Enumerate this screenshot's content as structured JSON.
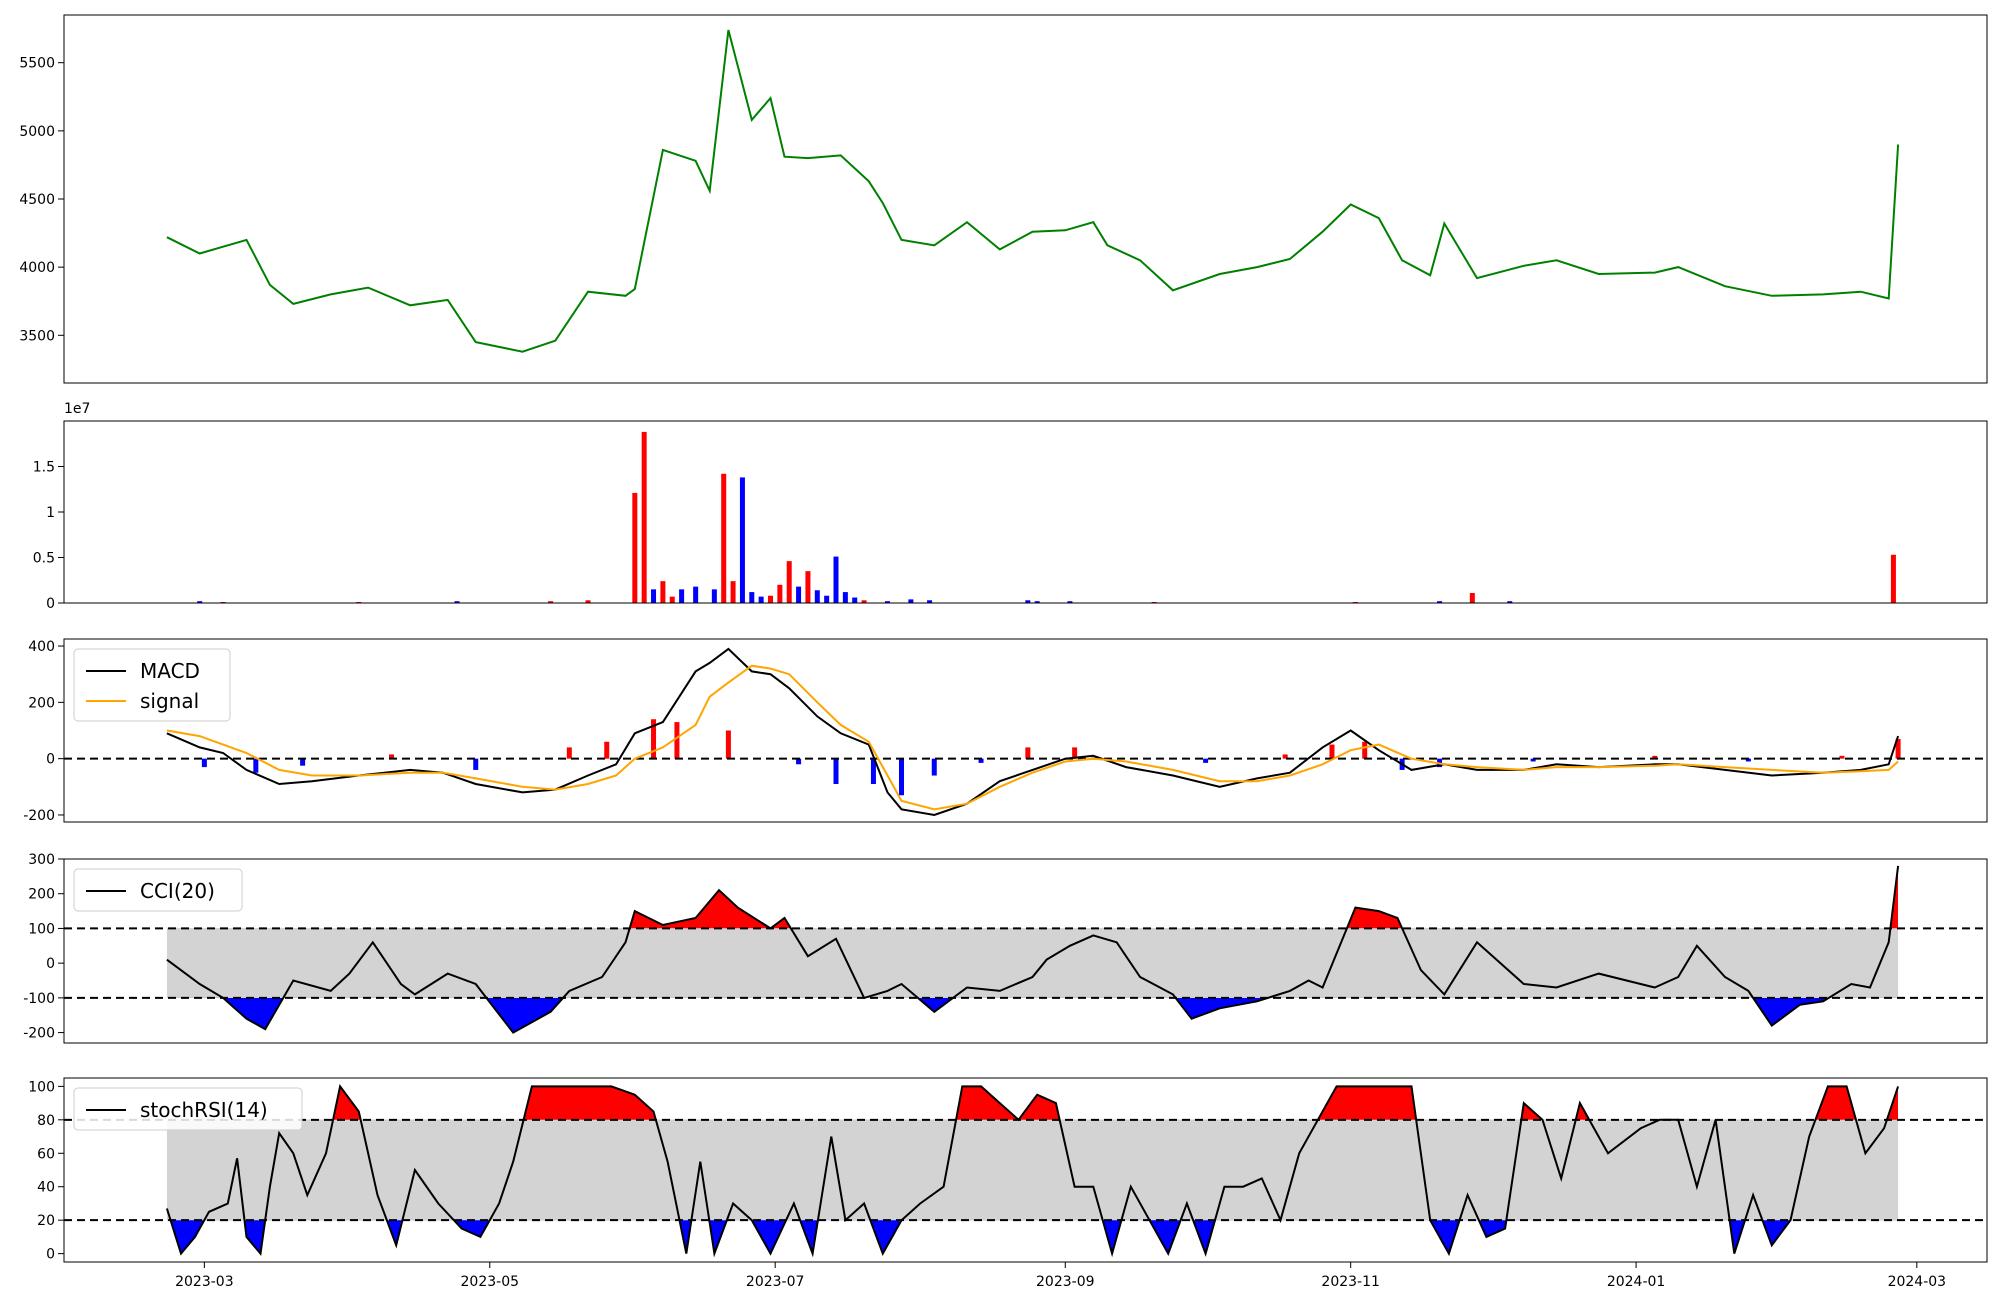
{
  "chart_data": [
    {
      "type": "line",
      "panel": "price",
      "ylim": [
        3150,
        5850
      ],
      "yticks": [
        3500,
        4000,
        4500,
        5000,
        5500
      ],
      "colors": {
        "line": "#008000"
      },
      "x": [
        "2023-02-21",
        "2023-02-28",
        "2023-03-05",
        "2023-03-10",
        "2023-03-15",
        "2023-03-20",
        "2023-03-28",
        "2023-04-05",
        "2023-04-14",
        "2023-04-22",
        "2023-04-28",
        "2023-05-08",
        "2023-05-15",
        "2023-05-22",
        "2023-05-30",
        "2023-06-01",
        "2023-06-07",
        "2023-06-14",
        "2023-06-17",
        "2023-06-21",
        "2023-06-26",
        "2023-06-30",
        "2023-07-03",
        "2023-07-08",
        "2023-07-15",
        "2023-07-21",
        "2023-07-24",
        "2023-07-28",
        "2023-08-04",
        "2023-08-11",
        "2023-08-18",
        "2023-08-25",
        "2023-09-01",
        "2023-09-07",
        "2023-09-10",
        "2023-09-17",
        "2023-09-24",
        "2023-10-04",
        "2023-10-12",
        "2023-10-19",
        "2023-10-26",
        "2023-11-01",
        "2023-11-07",
        "2023-11-12",
        "2023-11-18",
        "2023-11-21",
        "2023-11-28",
        "2023-12-08",
        "2023-12-15",
        "2023-12-24",
        "2024-01-05",
        "2024-01-10",
        "2024-01-20",
        "2024-01-30",
        "2024-02-10",
        "2024-02-18",
        "2024-02-24",
        "2024-02-26"
      ],
      "y": [
        4220,
        4100,
        4150,
        4200,
        3870,
        3730,
        3800,
        3850,
        3720,
        3760,
        3450,
        3380,
        3460,
        3820,
        3790,
        3840,
        4860,
        4780,
        4560,
        5740,
        5080,
        5240,
        4810,
        4800,
        4820,
        4630,
        4470,
        4200,
        4160,
        4330,
        4130,
        4260,
        4270,
        4330,
        4160,
        4050,
        3830,
        3950,
        4000,
        4060,
        4260,
        4460,
        4360,
        4050,
        3940,
        4320,
        3920,
        4010,
        4050,
        3950,
        3960,
        4000,
        3860,
        3790,
        3800,
        3820,
        3770,
        4900
      ]
    },
    {
      "type": "bar",
      "panel": "volume",
      "exponent_label": "1e7",
      "ylim": [
        0,
        2
      ],
      "yticks": [
        0.0,
        0.5,
        1.0,
        1.5
      ],
      "colors": {
        "up": "#ff0000",
        "down": "#0000ff"
      },
      "bars": [
        {
          "x": "2023-02-28",
          "v": 0.02,
          "c": "down"
        },
        {
          "x": "2023-03-05",
          "v": 0.01,
          "c": "up"
        },
        {
          "x": "2023-04-03",
          "v": 0.01,
          "c": "up"
        },
        {
          "x": "2023-04-24",
          "v": 0.02,
          "c": "down"
        },
        {
          "x": "2023-05-14",
          "v": 0.02,
          "c": "up"
        },
        {
          "x": "2023-05-22",
          "v": 0.03,
          "c": "up"
        },
        {
          "x": "2023-06-01",
          "v": 1.21,
          "c": "up"
        },
        {
          "x": "2023-06-03",
          "v": 1.88,
          "c": "up"
        },
        {
          "x": "2023-06-05",
          "v": 0.15,
          "c": "down"
        },
        {
          "x": "2023-06-07",
          "v": 0.24,
          "c": "up"
        },
        {
          "x": "2023-06-09",
          "v": 0.07,
          "c": "up"
        },
        {
          "x": "2023-06-11",
          "v": 0.15,
          "c": "down"
        },
        {
          "x": "2023-06-14",
          "v": 0.18,
          "c": "down"
        },
        {
          "x": "2023-06-18",
          "v": 0.15,
          "c": "down"
        },
        {
          "x": "2023-06-20",
          "v": 1.42,
          "c": "up"
        },
        {
          "x": "2023-06-22",
          "v": 0.24,
          "c": "up"
        },
        {
          "x": "2023-06-24",
          "v": 1.38,
          "c": "down"
        },
        {
          "x": "2023-06-26",
          "v": 0.12,
          "c": "down"
        },
        {
          "x": "2023-06-28",
          "v": 0.07,
          "c": "down"
        },
        {
          "x": "2023-06-30",
          "v": 0.08,
          "c": "up"
        },
        {
          "x": "2023-07-02",
          "v": 0.2,
          "c": "up"
        },
        {
          "x": "2023-07-04",
          "v": 0.46,
          "c": "up"
        },
        {
          "x": "2023-07-06",
          "v": 0.18,
          "c": "down"
        },
        {
          "x": "2023-07-08",
          "v": 0.35,
          "c": "up"
        },
        {
          "x": "2023-07-10",
          "v": 0.14,
          "c": "down"
        },
        {
          "x": "2023-07-12",
          "v": 0.08,
          "c": "down"
        },
        {
          "x": "2023-07-14",
          "v": 0.51,
          "c": "down"
        },
        {
          "x": "2023-07-16",
          "v": 0.12,
          "c": "down"
        },
        {
          "x": "2023-07-18",
          "v": 0.06,
          "c": "down"
        },
        {
          "x": "2023-07-20",
          "v": 0.03,
          "c": "up"
        },
        {
          "x": "2023-07-25",
          "v": 0.02,
          "c": "down"
        },
        {
          "x": "2023-07-30",
          "v": 0.04,
          "c": "down"
        },
        {
          "x": "2023-08-03",
          "v": 0.03,
          "c": "down"
        },
        {
          "x": "2023-08-24",
          "v": 0.03,
          "c": "down"
        },
        {
          "x": "2023-08-26",
          "v": 0.02,
          "c": "down"
        },
        {
          "x": "2023-09-02",
          "v": 0.02,
          "c": "down"
        },
        {
          "x": "2023-09-20",
          "v": 0.01,
          "c": "up"
        },
        {
          "x": "2023-11-02",
          "v": 0.01,
          "c": "up"
        },
        {
          "x": "2023-11-20",
          "v": 0.02,
          "c": "down"
        },
        {
          "x": "2023-11-27",
          "v": 0.11,
          "c": "up"
        },
        {
          "x": "2023-12-05",
          "v": 0.02,
          "c": "down"
        },
        {
          "x": "2024-02-25",
          "v": 0.53,
          "c": "up"
        }
      ]
    },
    {
      "type": "line",
      "panel": "macd",
      "ylim": [
        -225,
        425
      ],
      "yticks": [
        -200,
        0,
        200,
        400
      ],
      "hline": 0,
      "colors": {
        "macd": "#000000",
        "signal": "#ffa500",
        "pos": "#ff0000",
        "neg": "#0000ff"
      },
      "legend": [
        "MACD",
        "signal"
      ],
      "x": [
        "2023-02-21",
        "2023-02-28",
        "2023-03-05",
        "2023-03-10",
        "2023-03-17",
        "2023-03-24",
        "2023-04-03",
        "2023-04-14",
        "2023-04-21",
        "2023-04-28",
        "2023-05-08",
        "2023-05-15",
        "2023-05-22",
        "2023-05-28",
        "2023-06-01",
        "2023-06-07",
        "2023-06-14",
        "2023-06-17",
        "2023-06-21",
        "2023-06-26",
        "2023-06-30",
        "2023-07-04",
        "2023-07-10",
        "2023-07-15",
        "2023-07-21",
        "2023-07-25",
        "2023-07-28",
        "2023-08-04",
        "2023-08-11",
        "2023-08-18",
        "2023-08-25",
        "2023-09-01",
        "2023-09-07",
        "2023-09-14",
        "2023-09-24",
        "2023-10-04",
        "2023-10-12",
        "2023-10-19",
        "2023-10-26",
        "2023-11-01",
        "2023-11-07",
        "2023-11-14",
        "2023-11-21",
        "2023-11-28",
        "2023-12-08",
        "2023-12-15",
        "2023-12-24",
        "2024-01-05",
        "2024-01-10",
        "2024-01-20",
        "2024-01-30",
        "2024-02-10",
        "2024-02-18",
        "2024-02-24",
        "2024-02-26"
      ],
      "series": [
        {
          "name": "MACD",
          "values": [
            90,
            40,
            20,
            -40,
            -90,
            -80,
            -60,
            -40,
            -50,
            -90,
            -120,
            -110,
            -60,
            -20,
            90,
            130,
            310,
            340,
            390,
            310,
            300,
            250,
            150,
            90,
            50,
            -120,
            -180,
            -200,
            -160,
            -80,
            -40,
            0,
            10,
            -30,
            -60,
            -100,
            -70,
            -50,
            40,
            100,
            30,
            -40,
            -20,
            -40,
            -40,
            -20,
            -30,
            -20,
            -20,
            -40,
            -60,
            -50,
            -40,
            -20,
            80
          ]
        },
        {
          "name": "signal",
          "values": [
            100,
            80,
            50,
            20,
            -40,
            -60,
            -60,
            -50,
            -50,
            -70,
            -100,
            -110,
            -90,
            -60,
            0,
            40,
            120,
            220,
            270,
            330,
            320,
            300,
            200,
            120,
            60,
            -60,
            -150,
            -180,
            -160,
            -100,
            -50,
            -10,
            0,
            -10,
            -40,
            -80,
            -80,
            -60,
            -20,
            30,
            50,
            0,
            -20,
            -30,
            -40,
            -30,
            -30,
            -25,
            -20,
            -30,
            -40,
            -50,
            -45,
            -40,
            -10
          ]
        }
      ],
      "histogram": [
        {
          "x": "2023-03-01",
          "v": -30
        },
        {
          "x": "2023-03-12",
          "v": -50
        },
        {
          "x": "2023-03-22",
          "v": -25
        },
        {
          "x": "2023-04-10",
          "v": 15
        },
        {
          "x": "2023-04-28",
          "v": -40
        },
        {
          "x": "2023-05-18",
          "v": 40
        },
        {
          "x": "2023-05-26",
          "v": 60
        },
        {
          "x": "2023-06-05",
          "v": 140
        },
        {
          "x": "2023-06-10",
          "v": 130
        },
        {
          "x": "2023-06-21",
          "v": 100
        },
        {
          "x": "2023-07-06",
          "v": -20
        },
        {
          "x": "2023-07-14",
          "v": -90
        },
        {
          "x": "2023-07-22",
          "v": -90
        },
        {
          "x": "2023-07-28",
          "v": -130
        },
        {
          "x": "2023-08-04",
          "v": -60
        },
        {
          "x": "2023-08-14",
          "v": -15
        },
        {
          "x": "2023-08-24",
          "v": 40
        },
        {
          "x": "2023-09-03",
          "v": 40
        },
        {
          "x": "2023-10-01",
          "v": -15
        },
        {
          "x": "2023-10-18",
          "v": 15
        },
        {
          "x": "2023-10-28",
          "v": 50
        },
        {
          "x": "2023-11-04",
          "v": 60
        },
        {
          "x": "2023-11-12",
          "v": -40
        },
        {
          "x": "2023-11-20",
          "v": -30
        },
        {
          "x": "2023-12-10",
          "v": -10
        },
        {
          "x": "2024-01-05",
          "v": 10
        },
        {
          "x": "2024-01-25",
          "v": -10
        },
        {
          "x": "2024-02-14",
          "v": 10
        },
        {
          "x": "2024-02-26",
          "v": 70
        }
      ]
    },
    {
      "type": "line",
      "panel": "cci",
      "ylim": [
        -230,
        300
      ],
      "yticks": [
        -200,
        -100,
        0,
        100,
        200,
        300
      ],
      "band": [
        -100,
        100
      ],
      "hlines": [
        100,
        -100
      ],
      "colors": {
        "line": "#000000",
        "band": "#d3d3d3",
        "over": "#ff0000",
        "under": "#0000ff"
      },
      "legend": [
        "CCI(20)"
      ],
      "x": [
        "2023-02-21",
        "2023-02-28",
        "2023-03-05",
        "2023-03-10",
        "2023-03-14",
        "2023-03-20",
        "2023-03-28",
        "2023-04-01",
        "2023-04-06",
        "2023-04-12",
        "2023-04-15",
        "2023-04-22",
        "2023-04-28",
        "2023-05-06",
        "2023-05-14",
        "2023-05-18",
        "2023-05-25",
        "2023-05-30",
        "2023-06-01",
        "2023-06-07",
        "2023-06-14",
        "2023-06-19",
        "2023-06-23",
        "2023-06-30",
        "2023-07-03",
        "2023-07-08",
        "2023-07-14",
        "2023-07-20",
        "2023-07-25",
        "2023-07-28",
        "2023-08-04",
        "2023-08-11",
        "2023-08-18",
        "2023-08-25",
        "2023-08-28",
        "2023-09-02",
        "2023-09-07",
        "2023-09-12",
        "2023-09-17",
        "2023-09-24",
        "2023-09-28",
        "2023-10-04",
        "2023-10-12",
        "2023-10-19",
        "2023-10-23",
        "2023-10-26",
        "2023-11-02",
        "2023-11-07",
        "2023-11-11",
        "2023-11-16",
        "2023-11-21",
        "2023-11-28",
        "2023-12-08",
        "2023-12-15",
        "2023-12-24",
        "2024-01-05",
        "2024-01-10",
        "2024-01-14",
        "2024-01-20",
        "2024-01-25",
        "2024-01-30",
        "2024-02-05",
        "2024-02-10",
        "2024-02-16",
        "2024-02-20",
        "2024-02-24",
        "2024-02-26"
      ],
      "y": [
        10,
        -60,
        -100,
        -160,
        -190,
        -50,
        -80,
        -30,
        60,
        -60,
        -90,
        -30,
        -60,
        -200,
        -140,
        -80,
        -40,
        60,
        150,
        110,
        130,
        210,
        160,
        100,
        130,
        20,
        70,
        -100,
        -80,
        -60,
        -140,
        -70,
        -80,
        -40,
        10,
        50,
        80,
        60,
        -40,
        -90,
        -160,
        -130,
        -110,
        -80,
        -50,
        -70,
        160,
        150,
        130,
        -20,
        -90,
        60,
        -60,
        -70,
        -30,
        -70,
        -40,
        50,
        -40,
        -80,
        -180,
        -120,
        -110,
        -60,
        -70,
        60,
        280
      ]
    },
    {
      "type": "line",
      "panel": "stochrsi",
      "ylim": [
        -5,
        105
      ],
      "yticks": [
        0,
        20,
        40,
        60,
        80,
        100
      ],
      "band": [
        20,
        80
      ],
      "hlines": [
        80,
        20
      ],
      "colors": {
        "line": "#000000",
        "band": "#d3d3d3",
        "over": "#ff0000",
        "under": "#0000ff"
      },
      "legend": [
        "stochRSI(14)"
      ],
      "x": [
        "2023-02-21",
        "2023-02-24",
        "2023-02-27",
        "2023-03-02",
        "2023-03-06",
        "2023-03-08",
        "2023-03-10",
        "2023-03-13",
        "2023-03-15",
        "2023-03-17",
        "2023-03-20",
        "2023-03-23",
        "2023-03-27",
        "2023-03-30",
        "2023-04-03",
        "2023-04-07",
        "2023-04-11",
        "2023-04-15",
        "2023-04-20",
        "2023-04-25",
        "2023-04-29",
        "2023-05-03",
        "2023-05-06",
        "2023-05-10",
        "2023-05-13",
        "2023-05-20",
        "2023-05-27",
        "2023-06-01",
        "2023-06-05",
        "2023-06-08",
        "2023-06-12",
        "2023-06-15",
        "2023-06-18",
        "2023-06-22",
        "2023-06-26",
        "2023-06-30",
        "2023-07-05",
        "2023-07-09",
        "2023-07-13",
        "2023-07-16",
        "2023-07-20",
        "2023-07-24",
        "2023-07-28",
        "2023-08-01",
        "2023-08-06",
        "2023-08-10",
        "2023-08-14",
        "2023-08-18",
        "2023-08-22",
        "2023-08-26",
        "2023-08-30",
        "2023-09-03",
        "2023-09-07",
        "2023-09-11",
        "2023-09-15",
        "2023-09-19",
        "2023-09-23",
        "2023-09-27",
        "2023-10-01",
        "2023-10-05",
        "2023-10-09",
        "2023-10-13",
        "2023-10-17",
        "2023-10-21",
        "2023-10-25",
        "2023-10-29",
        "2023-11-02",
        "2023-11-06",
        "2023-11-10",
        "2023-11-14",
        "2023-11-18",
        "2023-11-22",
        "2023-11-26",
        "2023-11-30",
        "2023-12-04",
        "2023-12-08",
        "2023-12-12",
        "2023-12-16",
        "2023-12-20",
        "2023-12-26",
        "2024-01-02",
        "2024-01-06",
        "2024-01-10",
        "2024-01-14",
        "2024-01-18",
        "2024-01-22",
        "2024-01-26",
        "2024-01-30",
        "2024-02-03",
        "2024-02-07",
        "2024-02-11",
        "2024-02-15",
        "2024-02-19",
        "2024-02-23",
        "2024-02-26"
      ],
      "y": [
        27,
        0,
        10,
        25,
        30,
        57,
        10,
        0,
        40,
        72,
        60,
        35,
        60,
        100,
        85,
        35,
        5,
        50,
        30,
        15,
        10,
        30,
        55,
        100,
        100,
        100,
        100,
        95,
        85,
        55,
        0,
        55,
        0,
        30,
        20,
        0,
        30,
        0,
        70,
        20,
        30,
        0,
        20,
        30,
        40,
        100,
        100,
        90,
        80,
        95,
        90,
        40,
        40,
        0,
        40,
        20,
        0,
        30,
        0,
        40,
        40,
        45,
        20,
        60,
        80,
        100,
        100,
        100,
        100,
        100,
        20,
        0,
        35,
        10,
        15,
        90,
        80,
        45,
        90,
        60,
        75,
        80,
        80,
        40,
        80,
        0,
        35,
        5,
        20,
        70,
        100,
        100,
        60,
        75,
        100
      ]
    }
  ],
  "x_axis": {
    "ticks": [
      "2023-03",
      "2023-05",
      "2023-07",
      "2023-09",
      "2023-11",
      "2024-01",
      "2024-03"
    ]
  }
}
